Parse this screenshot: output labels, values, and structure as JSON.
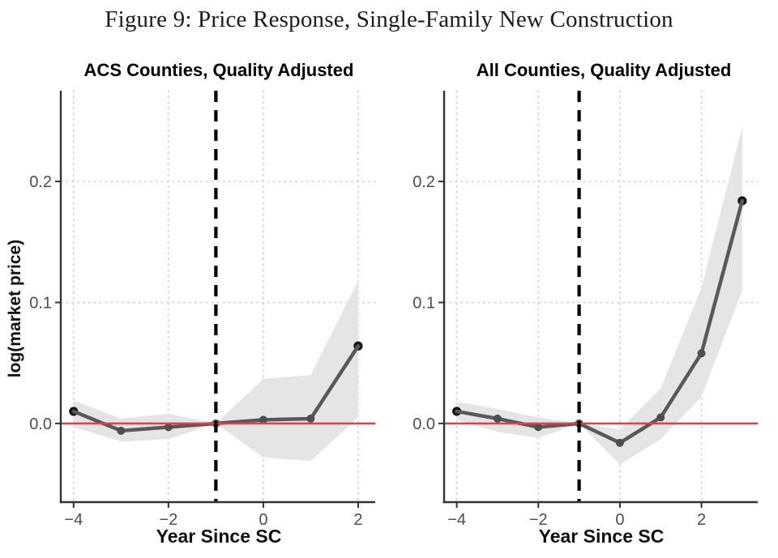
{
  "figure": {
    "title": "Figure 9: Price Response, Single-Family New Construction"
  },
  "colors": {
    "estimate_line": "#595959",
    "point_interior": "#4f4f4f",
    "point_endpoint": "#141414",
    "confidence_band": "#e5e5e5",
    "zero_line_red": "#ee3a44",
    "event_dashed_line": "#000000",
    "gridline": "#d4d4d4",
    "axis_line": "#333333",
    "tick_label": "#4d4d4d"
  },
  "chart_data": [
    {
      "type": "line",
      "title": "ACS Counties, Quality Adjusted",
      "xlabel": "Year Since SC",
      "ylabel": "log(market price)",
      "x": [
        -4,
        -3,
        -2,
        -1,
        0,
        1,
        2
      ],
      "series": [
        {
          "name": "point estimate",
          "values": [
            0.01,
            -0.006,
            -0.003,
            0.0,
            0.003,
            0.004,
            0.064
          ]
        },
        {
          "name": "95% CI lower",
          "values": [
            -0.003,
            -0.015,
            -0.013,
            0.0,
            -0.028,
            -0.031,
            0.005
          ]
        },
        {
          "name": "95% CI upper",
          "values": [
            0.019,
            0.004,
            0.008,
            0.0,
            0.037,
            0.04,
            0.118
          ]
        }
      ],
      "xlim": [
        -4.27,
        2.36
      ],
      "ylim": [
        -0.065,
        0.275
      ],
      "xticks": {
        "values": [
          -4,
          -2,
          0,
          2
        ],
        "labels": [
          "−4",
          "−2",
          "0",
          "2"
        ]
      },
      "yticks": {
        "values": [
          0,
          0.1,
          0.2
        ],
        "labels": [
          "0.0",
          "0.1",
          "0.2"
        ]
      },
      "vline_x": -1,
      "hline_y": 0,
      "grid": "dotted major gridlines only",
      "legend": "none"
    },
    {
      "type": "line",
      "title": "All Counties, Quality Adjusted",
      "xlabel": "Year Since SC",
      "ylabel": "log(market price)",
      "x": [
        -4,
        -3,
        -2,
        -1,
        0,
        1,
        2,
        3
      ],
      "series": [
        {
          "name": "point estimate",
          "values": [
            0.01,
            0.004,
            -0.003,
            0.0,
            -0.016,
            0.005,
            0.058,
            0.184
          ]
        },
        {
          "name": "95% CI lower",
          "values": [
            0.003,
            -0.007,
            -0.012,
            0.0,
            -0.034,
            -0.013,
            0.022,
            0.11
          ]
        },
        {
          "name": "95% CI upper",
          "values": [
            0.018,
            0.012,
            0.005,
            0.0,
            -0.005,
            0.029,
            0.112,
            0.245
          ]
        }
      ],
      "xlim": [
        -4.31,
        3.38
      ],
      "ylim": [
        -0.065,
        0.275
      ],
      "xticks": {
        "values": [
          -4,
          -2,
          0,
          2
        ],
        "labels": [
          "−4",
          "−2",
          "0",
          "2"
        ]
      },
      "yticks": {
        "values": [
          0,
          0.1,
          0.2
        ],
        "labels": [
          "0.0",
          "0.1",
          "0.2"
        ]
      },
      "vline_x": -1,
      "hline_y": 0,
      "grid": "dotted major gridlines only",
      "legend": "none"
    }
  ]
}
